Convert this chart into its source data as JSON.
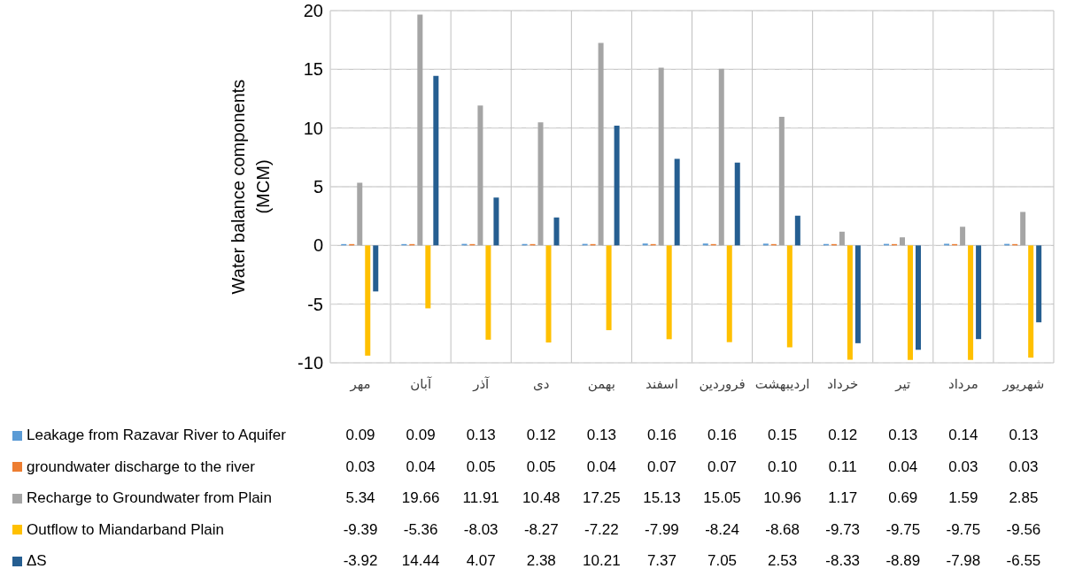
{
  "chart_data": {
    "type": "bar",
    "ylabel": "Water balance components (MCM)",
    "categories": [
      "مهر",
      "آبان",
      "آذر",
      "دی",
      "بهمن",
      "اسفند",
      "فروردین",
      "اردیبهشت",
      "خرداد",
      "تیر",
      "مرداد",
      "شهریور"
    ],
    "series": [
      {
        "name": "Leakage from Razavar River to Aquifer",
        "color": "#5b9bd5",
        "values": [
          0.09,
          0.09,
          0.13,
          0.12,
          0.13,
          0.16,
          0.16,
          0.15,
          0.12,
          0.13,
          0.14,
          0.13
        ],
        "value_labels": [
          "0.09",
          "0.09",
          "0.13",
          "0.12",
          "0.13",
          "0.16",
          "0.16",
          "0.15",
          "0.12",
          "0.13",
          "0.14",
          "0.13"
        ]
      },
      {
        "name": "groundwater discharge to the river",
        "color": "#ed7d31",
        "values": [
          0.03,
          0.04,
          0.05,
          0.05,
          0.04,
          0.07,
          0.07,
          0.1,
          0.11,
          0.04,
          0.03,
          0.03
        ],
        "value_labels": [
          "0.03",
          "0.04",
          "0.05",
          "0.05",
          "0.04",
          "0.07",
          "0.07",
          "0.10",
          "0.11",
          "0.04",
          "0.03",
          "0.03"
        ]
      },
      {
        "name": "Recharge to Groundwater from Plain",
        "color": "#a5a5a5",
        "values": [
          5.34,
          19.66,
          11.91,
          10.48,
          17.25,
          15.13,
          15.05,
          10.96,
          1.17,
          0.69,
          1.59,
          2.85
        ],
        "value_labels": [
          "5.34",
          "19.66",
          "11.91",
          "10.48",
          "17.25",
          "15.13",
          "15.05",
          "10.96",
          "1.17",
          "0.69",
          "1.59",
          "2.85"
        ]
      },
      {
        "name": "Outflow to Miandarband Plain",
        "color": "#ffc000",
        "values": [
          -9.39,
          -5.36,
          -8.03,
          -8.27,
          -7.22,
          -7.99,
          -8.24,
          -8.68,
          -9.73,
          -9.75,
          -9.75,
          -9.56
        ],
        "value_labels": [
          "-9.39",
          "-5.36",
          "-8.03",
          "-8.27",
          "-7.22",
          "-7.99",
          "-8.24",
          "-8.68",
          "-9.73",
          "-9.75",
          "-9.75",
          "-9.56"
        ]
      },
      {
        "name": "ΔS",
        "color": "#255e91",
        "values": [
          -3.92,
          14.44,
          4.07,
          2.38,
          10.21,
          7.37,
          7.05,
          2.53,
          -8.33,
          -8.89,
          -7.98,
          -6.55
        ],
        "value_labels": [
          "-3.92",
          "14.44",
          "4.07",
          "2.38",
          "10.21",
          "7.37",
          "7.05",
          "2.53",
          "-8.33",
          "-8.89",
          "-7.98",
          "-6.55"
        ]
      }
    ],
    "ylim": [
      -10,
      20
    ],
    "yticks": [
      -10,
      -5,
      0,
      5,
      10,
      15,
      20
    ],
    "grid": true,
    "legend": "bottom"
  }
}
